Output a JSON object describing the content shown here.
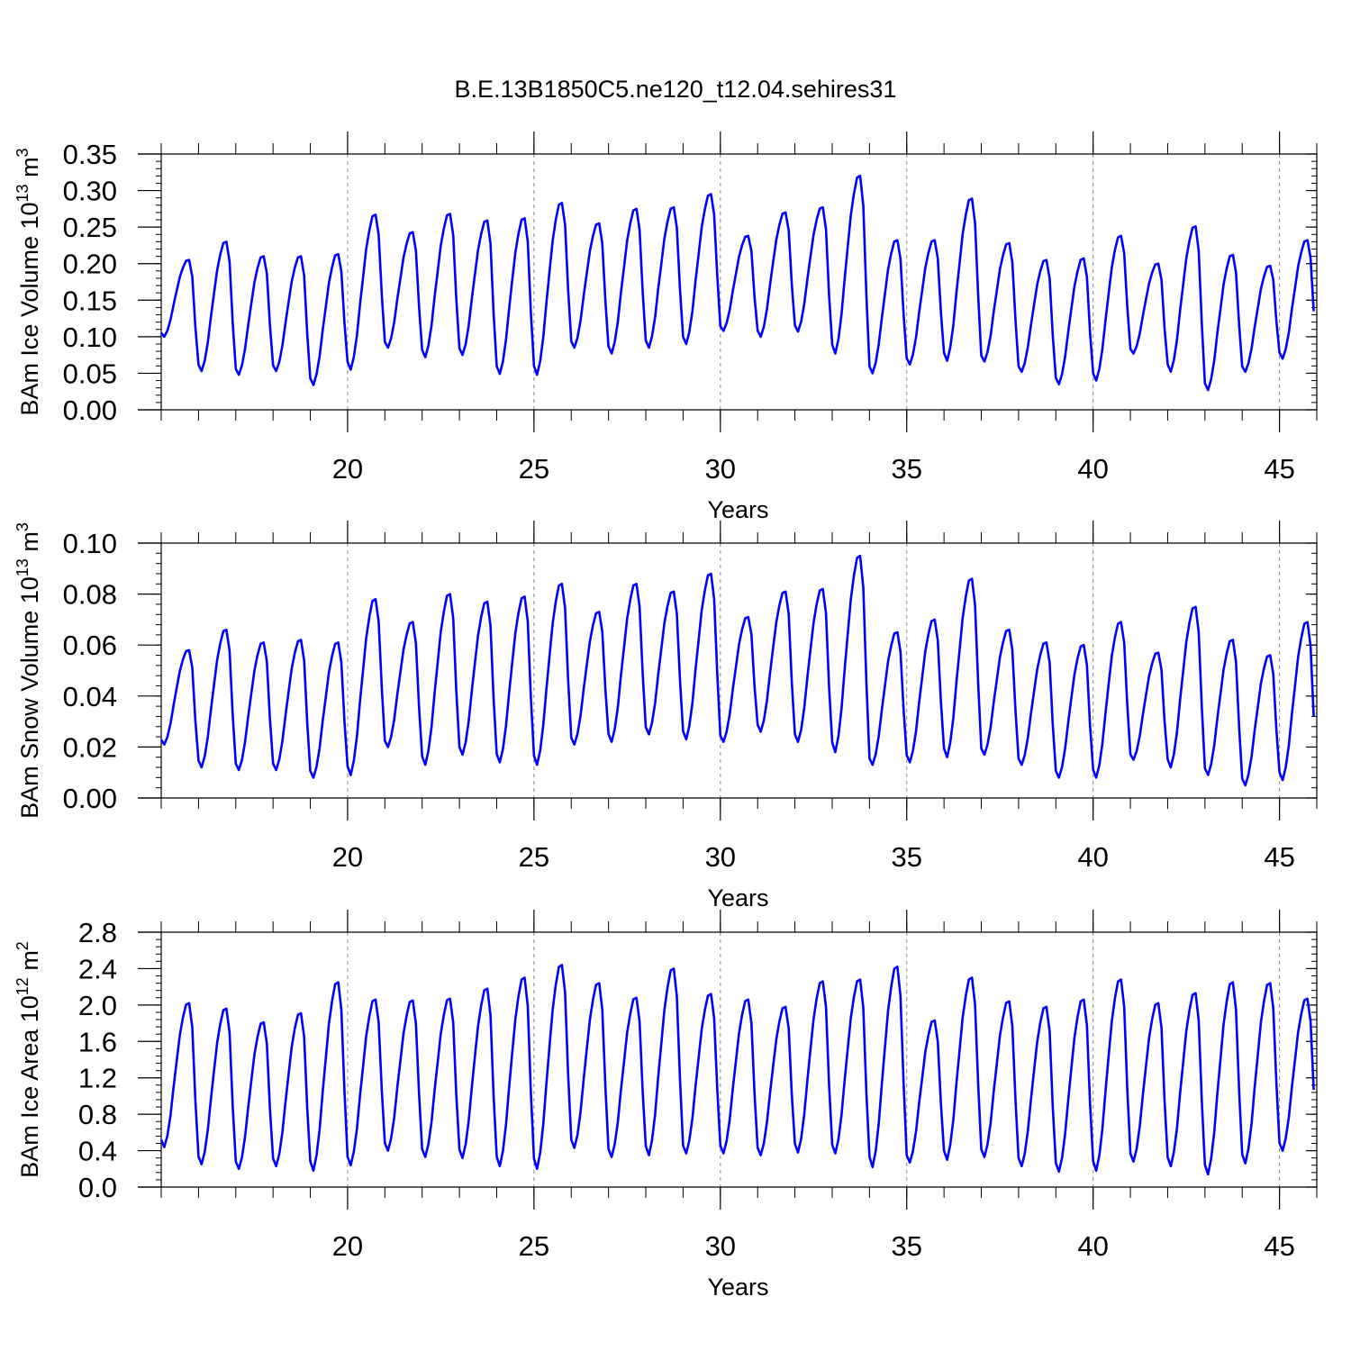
{
  "title": "B.E.13B1850C5.ne120_t12.04.sehires31",
  "colors": {
    "line": "#0000ff",
    "axis": "#000000",
    "refline": "#888888"
  },
  "chart_data": [
    {
      "type": "line",
      "ylabel": {
        "main": "BAm Ice Volume 10",
        "exp": "13",
        "tail": " m",
        "unit_exp": "3"
      },
      "xlabel": "Years",
      "xlim": [
        15.0,
        46.0
      ],
      "ylim": [
        0.0,
        0.35
      ],
      "xticks": [
        "20",
        "25",
        "30",
        "35",
        "40",
        "45"
      ],
      "xtick_values": [
        20,
        25,
        30,
        35,
        40,
        45
      ],
      "yticks": [
        "0.00",
        "0.05",
        "0.10",
        "0.15",
        "0.20",
        "0.25",
        "0.30",
        "0.35"
      ],
      "ytick_values": [
        0.0,
        0.05,
        0.1,
        0.15,
        0.2,
        0.25,
        0.3,
        0.35
      ],
      "yminor_step": 0.01,
      "reference_lines_x": [
        20,
        25,
        30,
        35,
        40,
        45
      ],
      "series": [
        {
          "name": "",
          "x_start": 15.0,
          "x_step": 0.0833333,
          "peaks": [
            0.205,
            0.23,
            0.21,
            0.21,
            0.213,
            0.267,
            0.243,
            0.268,
            0.259,
            0.262,
            0.283,
            0.255,
            0.275,
            0.277,
            0.295,
            0.238,
            0.27,
            0.277,
            0.32,
            0.232,
            0.232,
            0.289,
            0.228,
            0.205,
            0.207,
            0.238,
            0.2,
            0.251,
            0.212,
            0.197,
            0.232
          ],
          "mins": [
            0.1,
            0.053,
            0.048,
            0.053,
            0.034,
            0.055,
            0.085,
            0.072,
            0.075,
            0.049,
            0.048,
            0.085,
            0.077,
            0.085,
            0.09,
            0.108,
            0.1,
            0.107,
            0.077,
            0.05,
            0.062,
            0.067,
            0.066,
            0.052,
            0.035,
            0.04,
            0.077,
            0.052,
            0.027,
            0.052,
            0.07
          ]
        }
      ]
    },
    {
      "type": "line",
      "ylabel": {
        "main": "BAm Snow Volume 10",
        "exp": "13",
        "tail": " m",
        "unit_exp": "3"
      },
      "xlabel": "Years",
      "xlim": [
        15.0,
        46.0
      ],
      "ylim": [
        0.0,
        0.1
      ],
      "xticks": [
        "20",
        "25",
        "30",
        "35",
        "40",
        "45"
      ],
      "xtick_values": [
        20,
        25,
        30,
        35,
        40,
        45
      ],
      "yticks": [
        "0.00",
        "0.02",
        "0.04",
        "0.06",
        "0.08",
        "0.10"
      ],
      "ytick_values": [
        0.0,
        0.02,
        0.04,
        0.06,
        0.08,
        0.1
      ],
      "yminor_step": 0.004,
      "reference_lines_x": [
        20,
        25,
        30,
        35,
        40,
        45
      ],
      "series": [
        {
          "name": "",
          "x_start": 15.0,
          "x_step": 0.0833333,
          "peaks": [
            0.058,
            0.066,
            0.061,
            0.062,
            0.061,
            0.078,
            0.069,
            0.08,
            0.077,
            0.079,
            0.084,
            0.073,
            0.084,
            0.081,
            0.088,
            0.071,
            0.081,
            0.082,
            0.095,
            0.065,
            0.07,
            0.086,
            0.066,
            0.061,
            0.06,
            0.069,
            0.057,
            0.075,
            0.062,
            0.056,
            0.069
          ],
          "mins": [
            0.021,
            0.012,
            0.011,
            0.011,
            0.008,
            0.009,
            0.02,
            0.013,
            0.017,
            0.014,
            0.013,
            0.021,
            0.022,
            0.025,
            0.023,
            0.022,
            0.026,
            0.022,
            0.018,
            0.013,
            0.014,
            0.016,
            0.017,
            0.013,
            0.008,
            0.008,
            0.015,
            0.012,
            0.009,
            0.005,
            0.007
          ]
        }
      ]
    },
    {
      "type": "line",
      "ylabel": {
        "main": "BAm Ice Area 10",
        "exp": "12",
        "tail": " m",
        "unit_exp": "2"
      },
      "xlabel": "Years",
      "xlim": [
        15.0,
        46.0
      ],
      "ylim": [
        0.0,
        2.8
      ],
      "xticks": [
        "20",
        "25",
        "30",
        "35",
        "40",
        "45"
      ],
      "xtick_values": [
        20,
        25,
        30,
        35,
        40,
        45
      ],
      "yticks": [
        "0.0",
        "0.4",
        "0.8",
        "1.2",
        "1.6",
        "2.0",
        "2.4",
        "2.8"
      ],
      "ytick_values": [
        0.0,
        0.4,
        0.8,
        1.2,
        1.6,
        2.0,
        2.4,
        2.8
      ],
      "yminor_step": 0.08,
      "reference_lines_x": [
        20,
        25,
        30,
        35,
        40,
        45
      ],
      "series": [
        {
          "name": "",
          "x_start": 15.0,
          "x_step": 0.0833333,
          "peaks": [
            2.02,
            1.96,
            1.81,
            1.91,
            2.25,
            2.06,
            2.05,
            2.07,
            2.18,
            2.3,
            2.44,
            2.24,
            2.08,
            2.4,
            2.12,
            2.06,
            1.98,
            2.26,
            2.28,
            2.42,
            1.83,
            2.3,
            2.04,
            1.98,
            2.06,
            2.28,
            2.02,
            2.13,
            2.25,
            2.24,
            2.07
          ],
          "mins": [
            0.44,
            0.25,
            0.2,
            0.23,
            0.18,
            0.24,
            0.4,
            0.33,
            0.32,
            0.23,
            0.2,
            0.43,
            0.33,
            0.35,
            0.37,
            0.37,
            0.35,
            0.38,
            0.37,
            0.22,
            0.27,
            0.3,
            0.33,
            0.23,
            0.17,
            0.18,
            0.28,
            0.23,
            0.14,
            0.26,
            0.4
          ]
        }
      ]
    }
  ]
}
